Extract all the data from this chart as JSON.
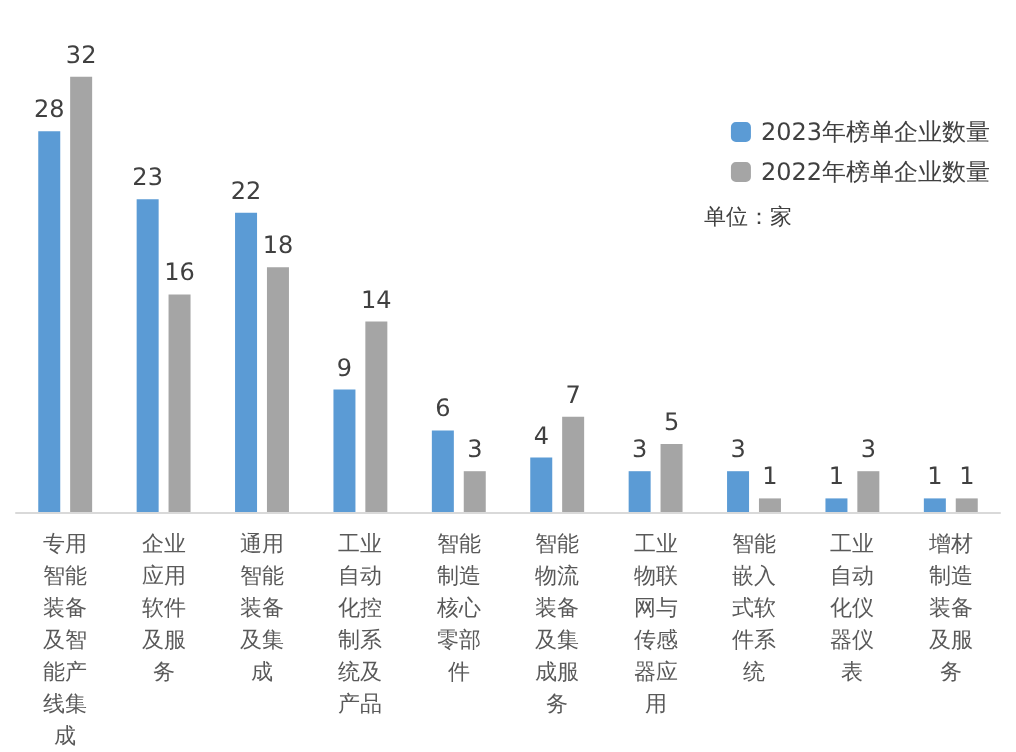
{
  "chart_data": {
    "type": "bar",
    "categories": [
      "专用智能装备及智能产线集成",
      "企业应用软件及服务",
      "通用智能装备及集成",
      "工业自动化控制系统及产品",
      "智能制造核心零部件",
      "智能物流装备及集成服务",
      "工业物联网与传感器应用",
      "智能嵌入式软件系统",
      "工业自动化仪器仪表",
      "增材制造装备及服务"
    ],
    "series": [
      {
        "name": "2023年榜单企业数量",
        "color": "#5b9bd5",
        "values": [
          28,
          23,
          22,
          9,
          6,
          4,
          3,
          3,
          1,
          1
        ]
      },
      {
        "name": "2022年榜单企业数量",
        "color": "#a5a5a5",
        "values": [
          32,
          16,
          18,
          14,
          3,
          7,
          5,
          1,
          3,
          1
        ]
      }
    ],
    "data_labels": true,
    "legend": "top right",
    "annotations": [
      "单位：家"
    ]
  }
}
